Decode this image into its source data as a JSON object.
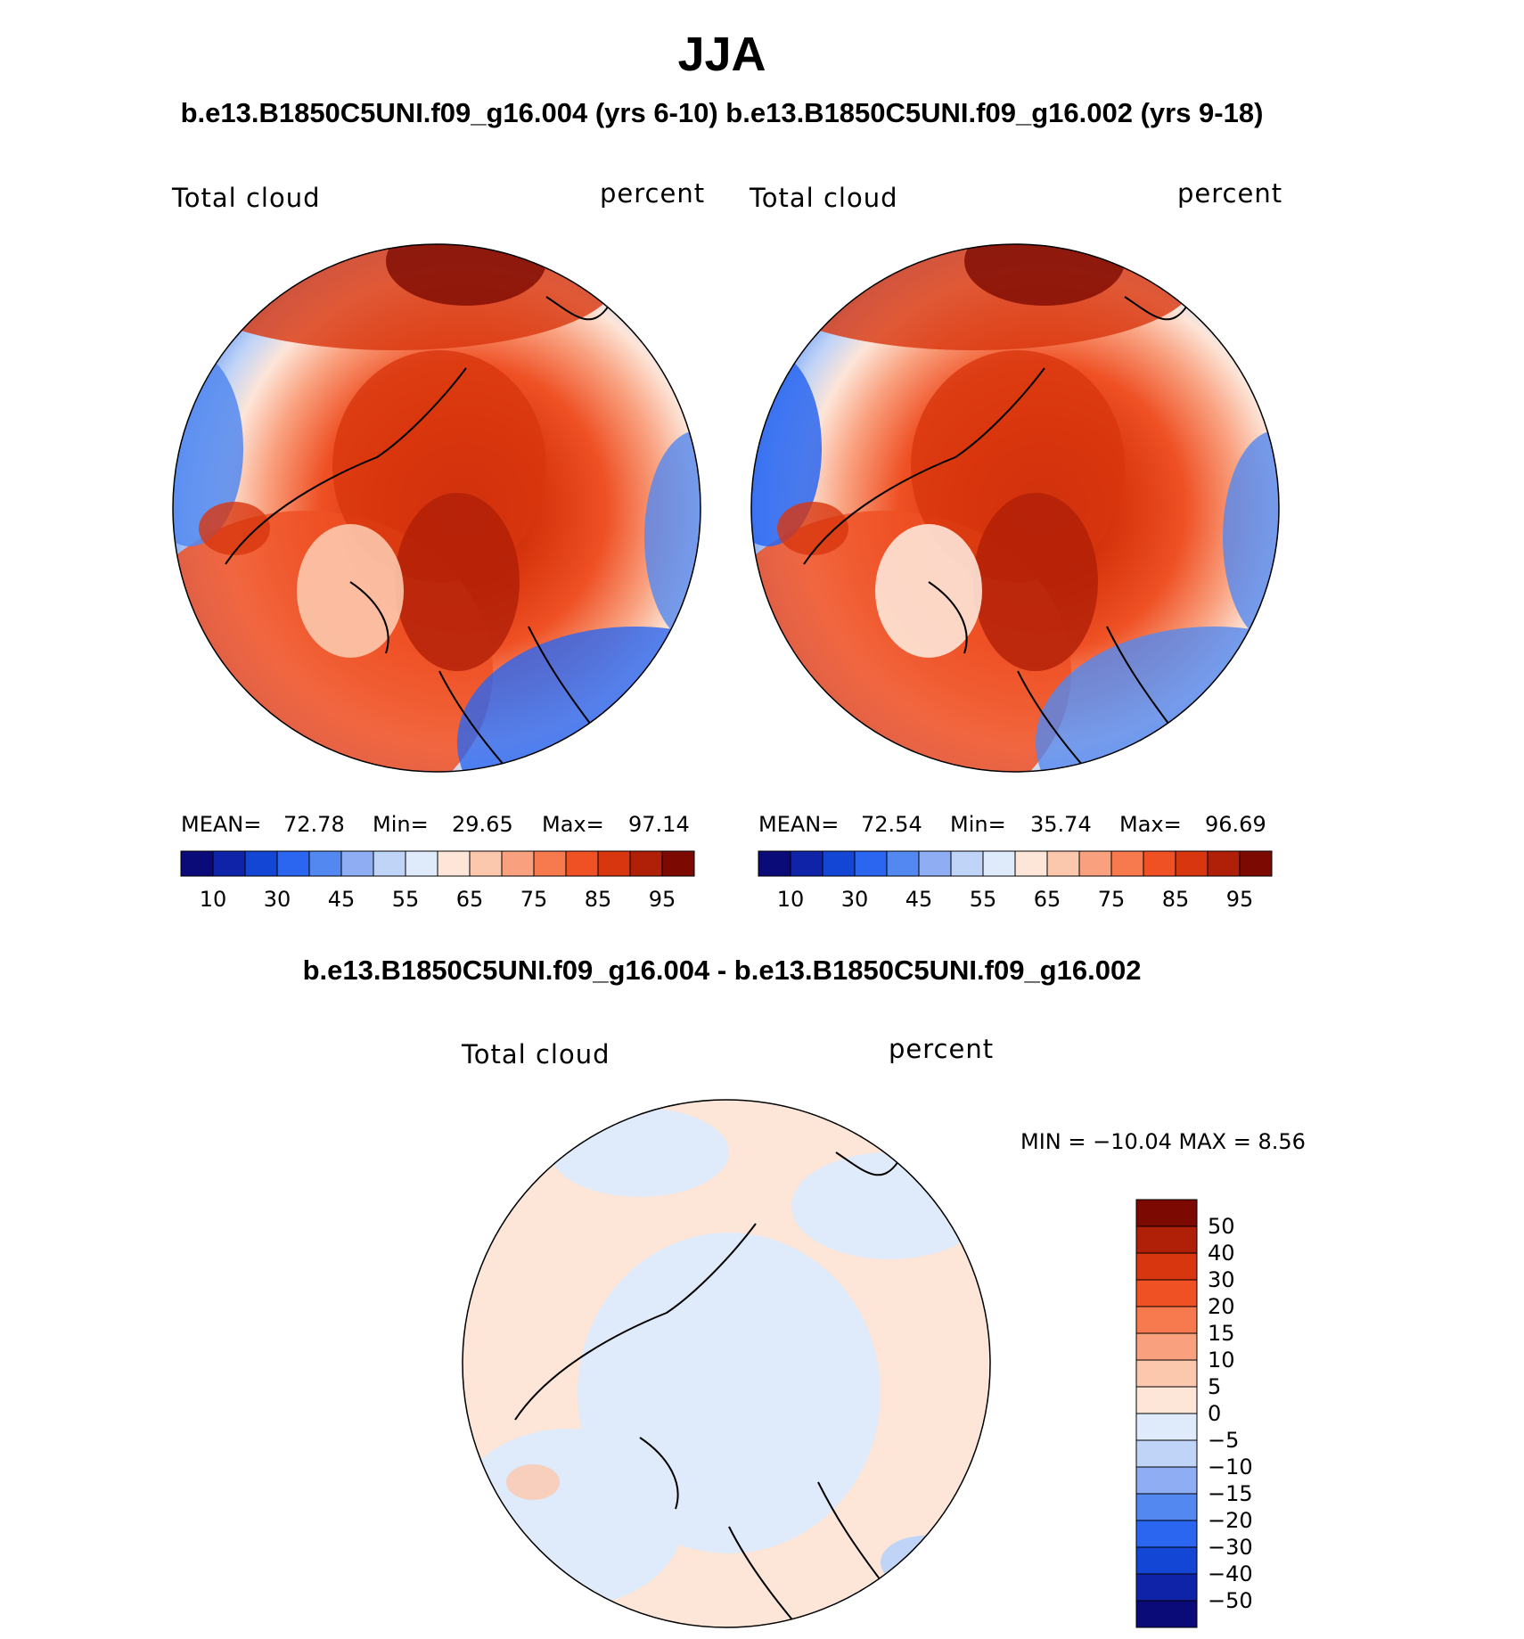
{
  "header": {
    "season": "JJA",
    "subtitle": "b.e13.B1850C5UNI.f09_g16.004 (yrs 6-10) b.e13.B1850C5UNI.f09_g16.002 (yrs 9-18)",
    "diff_subtitle": "b.e13.B1850C5UNI.f09_g16.004 - b.e13.B1850C5UNI.f09_g16.002"
  },
  "panels": [
    {
      "variable": "Total cloud",
      "units": "percent",
      "stats": {
        "mean_label": "MEAN=",
        "mean": "72.78",
        "min_label": "Min=",
        "min": "29.65",
        "max_label": "Max=",
        "max": "97.14"
      }
    },
    {
      "variable": "Total cloud",
      "units": "percent",
      "stats": {
        "mean_label": "MEAN=",
        "mean": "72.54",
        "min_label": "Min=",
        "min": "35.74",
        "max_label": "Max=",
        "max": "96.69"
      }
    }
  ],
  "diff_panel": {
    "variable": "Total cloud",
    "units": "percent",
    "minmax": "MIN = −10.04 MAX =    8.56"
  },
  "colorbar_main": {
    "colors": [
      "#0a0a78",
      "#0f23a8",
      "#1446d6",
      "#2a66f0",
      "#5288f0",
      "#8eadf2",
      "#c0d4f7",
      "#dfebfa",
      "#fde5d8",
      "#fcc8ad",
      "#f9a07e",
      "#f67a4e",
      "#ef5024",
      "#d8360e",
      "#b01f07",
      "#7c0a02"
    ],
    "tick_labels": [
      "10",
      "30",
      "45",
      "55",
      "65",
      "75",
      "85",
      "95"
    ]
  },
  "colorbar_diff": {
    "colors": [
      "#7c0a02",
      "#b01f07",
      "#d8360e",
      "#ef5024",
      "#f67a4e",
      "#f9a07e",
      "#fcc8ad",
      "#fde5d8",
      "#dfebfa",
      "#c0d4f7",
      "#8eadf2",
      "#5288f0",
      "#2a66f0",
      "#1446d6",
      "#0f23a8",
      "#0a0a78"
    ],
    "tick_labels": [
      "50",
      "40",
      "30",
      "20",
      "15",
      "10",
      "5",
      "0",
      "−5",
      "−10",
      "−15",
      "−20",
      "−30",
      "−40",
      "−50"
    ]
  }
}
